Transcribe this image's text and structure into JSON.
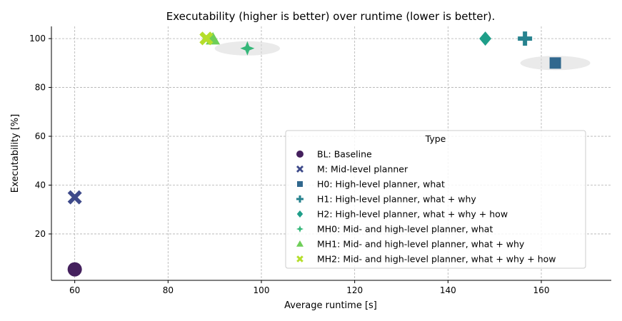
{
  "chart_data": {
    "type": "scatter",
    "title": "Executability (higher is better) over runtime (lower is better).",
    "xlabel": "Average runtime [s]",
    "ylabel": "Executability [%]",
    "xlim": [
      55,
      175
    ],
    "ylim": [
      1,
      105
    ],
    "xticks": [
      60,
      80,
      100,
      120,
      140,
      160
    ],
    "yticks": [
      20,
      40,
      60,
      80,
      100
    ],
    "grid": true,
    "legend_title": "Type",
    "legend_position": "lower-right",
    "series": [
      {
        "key": "BL",
        "name": "BL: Baseline",
        "x": 60,
        "y": 5.5,
        "marker": "circle",
        "color": "#44205d"
      },
      {
        "key": "M",
        "name": "M: Mid-level planner",
        "x": 60,
        "y": 35,
        "marker": "x",
        "color": "#3e4a8a"
      },
      {
        "key": "H0",
        "name": "H0: High-level planner, what",
        "x": 163,
        "y": 90,
        "marker": "square",
        "color": "#31688e"
      },
      {
        "key": "H1",
        "name": "H1: High-level planner, what + why",
        "x": 156.5,
        "y": 100,
        "marker": "plus",
        "color": "#26828e"
      },
      {
        "key": "H2",
        "name": "H2: High-level planner, what + why + how",
        "x": 148,
        "y": 100,
        "marker": "diamond",
        "color": "#1f9e89"
      },
      {
        "key": "MH0",
        "name": "MH0: Mid- and high-level planner, what",
        "x": 97,
        "y": 96,
        "marker": "star4",
        "color": "#35b779"
      },
      {
        "key": "MH1",
        "name": "MH1: Mid- and high-level planner, what + why",
        "x": 89,
        "y": 99.5,
        "marker": "triangle",
        "color": "#6ece58"
      },
      {
        "key": "MH2",
        "name": "MH2: Mid- and high-level planner, what + why + how",
        "x": 88.5,
        "y": 99.5,
        "marker": "x-square",
        "color": "#b5de2b"
      }
    ]
  }
}
